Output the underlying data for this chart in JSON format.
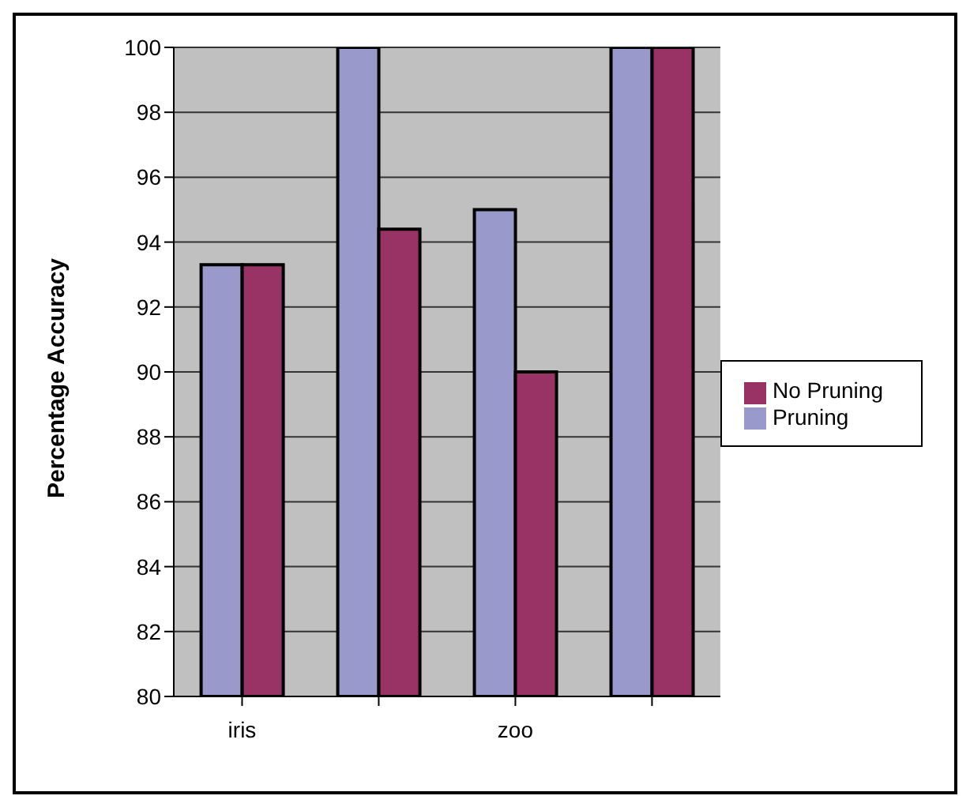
{
  "chart_data": {
    "type": "bar",
    "ylabel": "Percentage Accuracy",
    "categories": [
      "iris",
      null,
      "zoo",
      null
    ],
    "series": [
      {
        "name": "Pruning",
        "color": "#9999cc",
        "values": [
          93.3,
          100,
          95,
          100
        ]
      },
      {
        "name": "No Pruning",
        "color": "#993366",
        "values": [
          93.3,
          94.4,
          90,
          100
        ]
      }
    ],
    "ylim": [
      80,
      100
    ],
    "yticks": [
      80,
      82,
      84,
      86,
      88,
      90,
      92,
      94,
      96,
      98,
      100
    ],
    "grid": "y",
    "legend": "right"
  }
}
